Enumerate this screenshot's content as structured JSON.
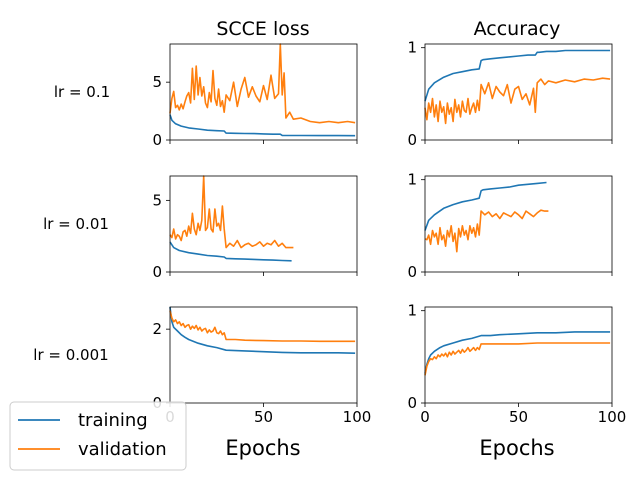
{
  "colors": {
    "training": "#1f77b4",
    "validation": "#ff7f0e"
  },
  "legend": [
    {
      "label": "training",
      "color": "#1f77b4"
    },
    {
      "label": "validation",
      "color": "#ff7f0e"
    }
  ],
  "column_titles": [
    "SCCE loss",
    "Accuracy"
  ],
  "row_labels": [
    "lr = 0.1",
    "lr = 0.01",
    "lr = 0.001"
  ],
  "xlabel": "Epochs",
  "chart_data": [
    {
      "type": "line",
      "row": 0,
      "col": 0,
      "title": "SCCE loss",
      "ylabel": "lr = 0.1",
      "xlabel": "",
      "xlim": [
        0,
        100
      ],
      "ylim": [
        0,
        8.3
      ],
      "xticks": [
        0,
        50,
        100
      ],
      "xtick_labels": [],
      "yticks": [
        0,
        5
      ],
      "ytick_labels": [
        "0",
        "5"
      ],
      "series": [
        {
          "name": "training",
          "x": [
            0,
            1,
            3,
            6,
            10,
            15,
            20,
            25,
            29,
            30,
            35,
            40,
            45,
            50,
            55,
            59,
            60,
            65,
            70,
            80,
            90,
            99
          ],
          "y": [
            2.2,
            1.7,
            1.4,
            1.2,
            1.05,
            0.95,
            0.85,
            0.8,
            0.78,
            0.6,
            0.58,
            0.56,
            0.55,
            0.53,
            0.5,
            0.5,
            0.4,
            0.39,
            0.39,
            0.38,
            0.38,
            0.37
          ]
        },
        {
          "name": "validation",
          "x": [
            0,
            1,
            2,
            3,
            4,
            5,
            6,
            7,
            8,
            9,
            10,
            11,
            12,
            13,
            14,
            15,
            16,
            17,
            18,
            19,
            20,
            21,
            22,
            23,
            24,
            25,
            26,
            27,
            28,
            29,
            30,
            32,
            34,
            36,
            38,
            40,
            42,
            44,
            46,
            48,
            50,
            52,
            54,
            56,
            58,
            59,
            60,
            61,
            62,
            64,
            66,
            70,
            75,
            80,
            85,
            90,
            95,
            99
          ],
          "y": [
            2.3,
            3.6,
            4.2,
            2.8,
            3.0,
            2.6,
            3.1,
            2.7,
            3.3,
            3.8,
            4.1,
            3.2,
            6.2,
            3.5,
            6.4,
            3.9,
            5.4,
            3.8,
            4.6,
            3.2,
            2.8,
            4.1,
            3.3,
            6.0,
            3.6,
            3.0,
            4.4,
            2.9,
            3.4,
            2.4,
            3.9,
            3.4,
            5.0,
            2.9,
            4.4,
            5.4,
            3.7,
            4.6,
            3.8,
            3.3,
            4.7,
            3.5,
            5.6,
            3.6,
            4.0,
            8.3,
            3.9,
            5.8,
            1.9,
            2.4,
            1.8,
            1.9,
            1.6,
            1.5,
            1.6,
            1.5,
            1.6,
            1.5
          ]
        }
      ]
    },
    {
      "type": "line",
      "row": 0,
      "col": 1,
      "title": "Accuracy",
      "ylabel": "",
      "xlabel": "",
      "xlim": [
        0,
        100
      ],
      "ylim": [
        0,
        1.04
      ],
      "xticks": [
        0,
        50,
        100
      ],
      "xtick_labels": [],
      "yticks": [
        0,
        1
      ],
      "ytick_labels": [
        "0",
        "1"
      ],
      "series": [
        {
          "name": "training",
          "x": [
            0,
            2,
            5,
            10,
            15,
            20,
            25,
            29,
            30,
            31,
            35,
            40,
            45,
            50,
            55,
            59,
            60,
            61,
            65,
            70,
            75,
            80,
            90,
            99
          ],
          "y": [
            0.42,
            0.55,
            0.62,
            0.68,
            0.72,
            0.74,
            0.76,
            0.77,
            0.86,
            0.87,
            0.88,
            0.89,
            0.9,
            0.91,
            0.92,
            0.92,
            0.95,
            0.95,
            0.96,
            0.96,
            0.97,
            0.97,
            0.97,
            0.97
          ]
        },
        {
          "name": "validation",
          "x": [
            0,
            1,
            2,
            3,
            4,
            5,
            6,
            7,
            8,
            9,
            10,
            11,
            12,
            13,
            14,
            15,
            16,
            17,
            18,
            19,
            20,
            21,
            22,
            23,
            24,
            25,
            26,
            27,
            28,
            29,
            30,
            31,
            32,
            34,
            36,
            38,
            40,
            42,
            44,
            46,
            48,
            50,
            52,
            54,
            56,
            58,
            59,
            60,
            62,
            64,
            66,
            70,
            75,
            80,
            85,
            90,
            95,
            99
          ],
          "y": [
            0.35,
            0.22,
            0.4,
            0.3,
            0.45,
            0.25,
            0.38,
            0.2,
            0.42,
            0.3,
            0.36,
            0.18,
            0.4,
            0.28,
            0.35,
            0.2,
            0.44,
            0.3,
            0.38,
            0.25,
            0.42,
            0.32,
            0.3,
            0.45,
            0.28,
            0.35,
            0.4,
            0.3,
            0.43,
            0.32,
            0.6,
            0.55,
            0.5,
            0.62,
            0.45,
            0.58,
            0.52,
            0.48,
            0.6,
            0.4,
            0.55,
            0.58,
            0.44,
            0.5,
            0.38,
            0.56,
            0.3,
            0.62,
            0.66,
            0.6,
            0.64,
            0.62,
            0.65,
            0.63,
            0.66,
            0.65,
            0.67,
            0.66
          ]
        }
      ]
    },
    {
      "type": "line",
      "row": 1,
      "col": 0,
      "title": "",
      "ylabel": "lr = 0.01",
      "xlabel": "",
      "xlim": [
        0,
        100
      ],
      "ylim": [
        0,
        6.7
      ],
      "xticks": [
        0,
        50,
        100
      ],
      "xtick_labels": [],
      "yticks": [
        0,
        5
      ],
      "ytick_labels": [
        "0",
        "5"
      ],
      "series": [
        {
          "name": "training",
          "x": [
            0,
            2,
            5,
            10,
            15,
            20,
            25,
            29,
            30,
            35,
            40,
            45,
            50,
            55,
            60,
            65
          ],
          "y": [
            2.1,
            1.7,
            1.5,
            1.35,
            1.25,
            1.15,
            1.1,
            1.05,
            0.95,
            0.92,
            0.9,
            0.88,
            0.85,
            0.83,
            0.8,
            0.78
          ]
        },
        {
          "name": "validation",
          "x": [
            0,
            1,
            2,
            3,
            4,
            5,
            6,
            7,
            8,
            9,
            10,
            11,
            12,
            13,
            14,
            15,
            16,
            17,
            18,
            19,
            20,
            21,
            22,
            23,
            24,
            25,
            26,
            27,
            28,
            29,
            30,
            32,
            34,
            36,
            38,
            40,
            42,
            44,
            46,
            48,
            50,
            52,
            54,
            56,
            58,
            60,
            62,
            64,
            66
          ],
          "y": [
            2.6,
            2.4,
            3.0,
            2.3,
            2.6,
            2.5,
            2.2,
            2.8,
            2.9,
            2.5,
            3.2,
            2.7,
            4.1,
            3.0,
            2.6,
            3.4,
            2.9,
            3.6,
            6.7,
            2.9,
            3.1,
            4.4,
            3.0,
            2.8,
            4.4,
            3.2,
            3.4,
            2.9,
            4.6,
            3.0,
            1.7,
            2.0,
            1.8,
            2.2,
            1.7,
            1.9,
            2.0,
            1.8,
            1.9,
            2.1,
            1.8,
            2.0,
            1.9,
            2.2,
            1.8,
            2.0,
            1.7,
            1.7,
            1.7
          ]
        }
      ]
    },
    {
      "type": "line",
      "row": 1,
      "col": 1,
      "title": "",
      "ylabel": "",
      "xlabel": "",
      "xlim": [
        0,
        100
      ],
      "ylim": [
        0,
        1.04
      ],
      "xticks": [
        0,
        50,
        100
      ],
      "xtick_labels": [],
      "yticks": [
        0,
        1
      ],
      "ytick_labels": [
        "0",
        "1"
      ],
      "series": [
        {
          "name": "training",
          "x": [
            0,
            2,
            5,
            10,
            15,
            20,
            25,
            29,
            30,
            31,
            35,
            40,
            45,
            50,
            55,
            60,
            65
          ],
          "y": [
            0.45,
            0.56,
            0.62,
            0.69,
            0.73,
            0.76,
            0.78,
            0.8,
            0.88,
            0.89,
            0.9,
            0.91,
            0.92,
            0.94,
            0.95,
            0.96,
            0.97
          ]
        },
        {
          "name": "validation",
          "x": [
            0,
            1,
            2,
            3,
            4,
            5,
            6,
            7,
            8,
            9,
            10,
            11,
            12,
            13,
            14,
            15,
            16,
            17,
            18,
            19,
            20,
            21,
            22,
            23,
            24,
            25,
            26,
            27,
            28,
            29,
            30,
            32,
            34,
            36,
            38,
            40,
            42,
            44,
            46,
            48,
            50,
            52,
            54,
            56,
            58,
            60,
            62,
            64,
            66
          ],
          "y": [
            0.36,
            0.35,
            0.4,
            0.3,
            0.45,
            0.38,
            0.42,
            0.3,
            0.48,
            0.35,
            0.4,
            0.28,
            0.45,
            0.38,
            0.5,
            0.33,
            0.42,
            0.22,
            0.47,
            0.38,
            0.5,
            0.4,
            0.45,
            0.35,
            0.5,
            0.42,
            0.48,
            0.38,
            0.52,
            0.4,
            0.66,
            0.62,
            0.65,
            0.6,
            0.63,
            0.58,
            0.64,
            0.62,
            0.6,
            0.65,
            0.62,
            0.58,
            0.66,
            0.63,
            0.6,
            0.64,
            0.67,
            0.66,
            0.66
          ]
        }
      ]
    },
    {
      "type": "line",
      "row": 2,
      "col": 0,
      "title": "",
      "ylabel": "lr = 0.001",
      "xlabel": "Epochs",
      "xlim": [
        0,
        100
      ],
      "ylim": [
        0,
        2.6
      ],
      "xticks": [
        0,
        50,
        100
      ],
      "xtick_labels": [
        "0",
        "50",
        "100"
      ],
      "yticks": [
        0,
        2
      ],
      "ytick_labels": [
        "0",
        "2"
      ],
      "series": [
        {
          "name": "training",
          "x": [
            0,
            1,
            2,
            4,
            6,
            8,
            10,
            15,
            20,
            25,
            30,
            40,
            50,
            60,
            70,
            80,
            90,
            99
          ],
          "y": [
            2.6,
            2.2,
            2.05,
            1.95,
            1.85,
            1.78,
            1.72,
            1.62,
            1.55,
            1.5,
            1.43,
            1.41,
            1.39,
            1.37,
            1.36,
            1.36,
            1.36,
            1.35
          ]
        },
        {
          "name": "validation",
          "x": [
            0,
            1,
            2,
            3,
            4,
            5,
            6,
            7,
            8,
            9,
            10,
            11,
            12,
            13,
            14,
            15,
            16,
            17,
            18,
            19,
            20,
            21,
            22,
            23,
            24,
            25,
            26,
            27,
            28,
            29,
            30,
            35,
            40,
            50,
            60,
            70,
            80,
            90,
            99
          ],
          "y": [
            2.5,
            2.3,
            2.2,
            2.25,
            2.15,
            2.2,
            2.1,
            2.15,
            2.05,
            2.1,
            2.12,
            2.0,
            2.08,
            2.02,
            2.1,
            1.98,
            2.05,
            1.95,
            2.0,
            2.02,
            1.9,
            1.98,
            1.92,
            1.95,
            2.05,
            1.9,
            1.88,
            1.95,
            1.85,
            1.9,
            1.72,
            1.72,
            1.7,
            1.69,
            1.68,
            1.68,
            1.67,
            1.67,
            1.67
          ]
        }
      ]
    },
    {
      "type": "line",
      "row": 2,
      "col": 1,
      "title": "",
      "ylabel": "",
      "xlabel": "Epochs",
      "xlim": [
        0,
        100
      ],
      "ylim": [
        0,
        1.04
      ],
      "xticks": [
        0,
        50,
        100
      ],
      "xtick_labels": [
        "0",
        "50",
        "100"
      ],
      "yticks": [
        0,
        1
      ],
      "ytick_labels": [
        "0",
        "1"
      ],
      "series": [
        {
          "name": "training",
          "x": [
            0,
            1,
            2,
            3,
            5,
            8,
            10,
            15,
            20,
            25,
            30,
            35,
            40,
            50,
            60,
            70,
            80,
            90,
            99
          ],
          "y": [
            0.32,
            0.42,
            0.48,
            0.52,
            0.56,
            0.6,
            0.62,
            0.65,
            0.68,
            0.7,
            0.73,
            0.73,
            0.74,
            0.75,
            0.76,
            0.76,
            0.77,
            0.77,
            0.77
          ]
        },
        {
          "name": "validation",
          "x": [
            0,
            1,
            2,
            3,
            4,
            5,
            6,
            7,
            8,
            9,
            10,
            11,
            12,
            13,
            14,
            15,
            16,
            17,
            18,
            19,
            20,
            21,
            22,
            23,
            24,
            25,
            26,
            27,
            28,
            29,
            30,
            35,
            40,
            50,
            60,
            70,
            80,
            90,
            99
          ],
          "y": [
            0.3,
            0.4,
            0.45,
            0.48,
            0.47,
            0.5,
            0.48,
            0.52,
            0.5,
            0.53,
            0.51,
            0.54,
            0.5,
            0.55,
            0.52,
            0.56,
            0.53,
            0.55,
            0.57,
            0.54,
            0.58,
            0.55,
            0.57,
            0.6,
            0.56,
            0.58,
            0.6,
            0.57,
            0.6,
            0.58,
            0.64,
            0.64,
            0.64,
            0.64,
            0.65,
            0.65,
            0.65,
            0.65,
            0.65
          ]
        }
      ]
    }
  ]
}
